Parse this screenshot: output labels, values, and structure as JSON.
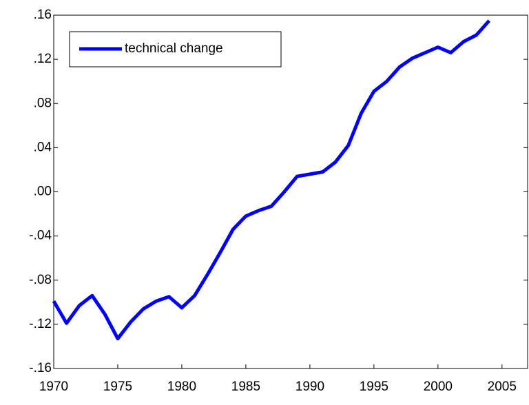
{
  "chart_data": {
    "type": "line",
    "x": [
      1970,
      1971,
      1972,
      1973,
      1974,
      1975,
      1976,
      1977,
      1978,
      1979,
      1980,
      1981,
      1982,
      1983,
      1984,
      1985,
      1986,
      1987,
      1988,
      1989,
      1990,
      1991,
      1992,
      1993,
      1994,
      1995,
      1996,
      1997,
      1998,
      1999,
      2000,
      2001,
      2002,
      2003,
      2004
    ],
    "series": [
      {
        "name": "technical change",
        "color": "#0000ff",
        "values": [
          -0.099,
          -0.119,
          -0.103,
          -0.094,
          -0.111,
          -0.133,
          -0.118,
          -0.106,
          -0.099,
          -0.095,
          -0.105,
          -0.094,
          -0.075,
          -0.055,
          -0.034,
          -0.022,
          -0.017,
          -0.013,
          0.0,
          0.014,
          0.016,
          0.018,
          0.027,
          0.042,
          0.071,
          0.091,
          0.1,
          0.113,
          0.121,
          0.126,
          0.131,
          0.126,
          0.136,
          0.142,
          0.155
        ]
      }
    ],
    "xlim": [
      1970,
      2007
    ],
    "xticks": [
      1970,
      1975,
      1980,
      1985,
      1990,
      1995,
      2000,
      2005
    ],
    "ylim": [
      -0.16,
      0.16
    ],
    "yticks": [
      {
        "value": -0.16,
        "label": "-.16"
      },
      {
        "value": -0.12,
        "label": "-.12"
      },
      {
        "value": -0.08,
        "label": "-.08"
      },
      {
        "value": -0.04,
        "label": "-.04"
      },
      {
        "value": 0,
        "label": ".00"
      },
      {
        "value": 0.04,
        "label": ".04"
      },
      {
        "value": 0.08,
        "label": ".08"
      },
      {
        "value": 0.12,
        "label": ".12"
      },
      {
        "value": 0.16,
        "label": ".16"
      }
    ],
    "legend": "top-left"
  }
}
